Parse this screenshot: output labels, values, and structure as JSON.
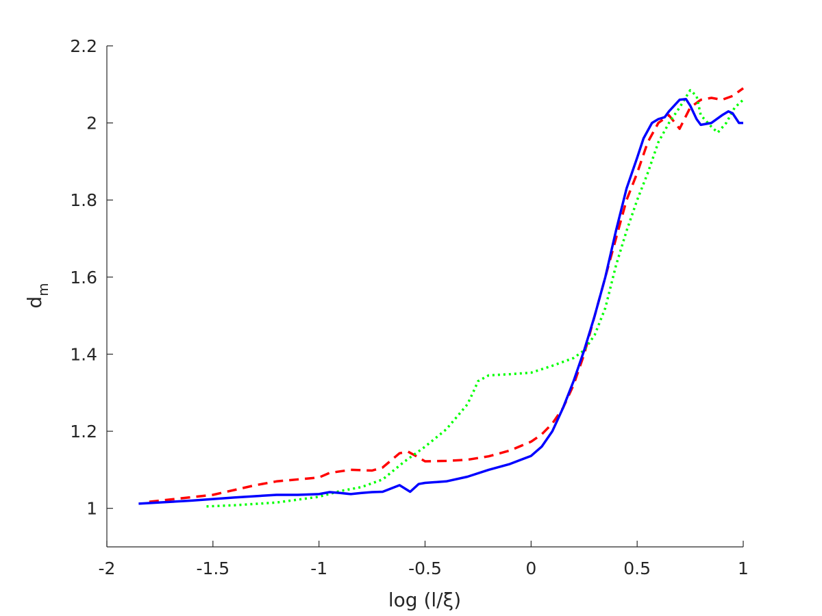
{
  "chart_data": {
    "type": "line",
    "xlabel": "log (l/ξ)",
    "ylabel": "d",
    "ylabel_subscript": "m",
    "xlim": [
      -2,
      1
    ],
    "ylim": [
      0.9,
      2.2
    ],
    "xticks": [
      -2,
      -1.5,
      -1,
      -0.5,
      0,
      0.5,
      1
    ],
    "xtick_labels": [
      "-2",
      "-1.5",
      "-1",
      "-0.5",
      "0",
      "0.5",
      "1"
    ],
    "yticks": [
      1,
      1.2,
      1.4,
      1.6,
      1.8,
      2,
      2.2
    ],
    "ytick_labels": [
      "1",
      "1.2",
      "1.4",
      "1.6",
      "1.8",
      "2",
      "2.2"
    ],
    "grid": false,
    "box": "left-bottom",
    "series": [
      {
        "color": "#ff0000",
        "style": "dashed",
        "x": [
          -1.8,
          -1.5,
          -1.3,
          -1.2,
          -1.0,
          -0.95,
          -0.85,
          -0.75,
          -0.7,
          -0.62,
          -0.58,
          -0.55,
          -0.5,
          -0.4,
          -0.3,
          -0.2,
          -0.1,
          0.0,
          0.05,
          0.1,
          0.15,
          0.2,
          0.25,
          0.3,
          0.35,
          0.4,
          0.45,
          0.5,
          0.55,
          0.6,
          0.65,
          0.7,
          0.75,
          0.8,
          0.85,
          0.9,
          0.95,
          1.0
        ],
        "y": [
          1.017,
          1.035,
          1.06,
          1.07,
          1.08,
          1.092,
          1.1,
          1.098,
          1.106,
          1.143,
          1.147,
          1.138,
          1.122,
          1.123,
          1.126,
          1.135,
          1.15,
          1.173,
          1.192,
          1.22,
          1.26,
          1.32,
          1.4,
          1.5,
          1.6,
          1.7,
          1.8,
          1.87,
          1.95,
          2.0,
          2.02,
          1.985,
          2.04,
          2.06,
          2.065,
          2.06,
          2.07,
          2.09
        ]
      },
      {
        "color": "#00ff00",
        "style": "dotted",
        "x": [
          -1.53,
          -1.4,
          -1.2,
          -1.0,
          -0.9,
          -0.8,
          -0.7,
          -0.6,
          -0.5,
          -0.4,
          -0.3,
          -0.27,
          -0.25,
          -0.2,
          -0.1,
          0.0,
          0.1,
          0.2,
          0.25,
          0.3,
          0.35,
          0.4,
          0.45,
          0.5,
          0.55,
          0.6,
          0.65,
          0.7,
          0.75,
          0.78,
          0.8,
          0.85,
          0.88,
          0.92,
          0.96,
          1.0
        ],
        "y": [
          1.005,
          1.008,
          1.015,
          1.03,
          1.045,
          1.055,
          1.075,
          1.12,
          1.16,
          1.205,
          1.27,
          1.305,
          1.33,
          1.345,
          1.348,
          1.352,
          1.37,
          1.39,
          1.41,
          1.45,
          1.52,
          1.63,
          1.72,
          1.8,
          1.87,
          1.95,
          2.0,
          2.04,
          2.085,
          2.07,
          2.02,
          1.99,
          1.975,
          2.0,
          2.04,
          2.06
        ]
      },
      {
        "color": "#0000ff",
        "style": "solid",
        "x": [
          -1.85,
          -1.6,
          -1.4,
          -1.2,
          -1.1,
          -1.0,
          -0.95,
          -0.9,
          -0.85,
          -0.8,
          -0.75,
          -0.7,
          -0.62,
          -0.57,
          -0.53,
          -0.5,
          -0.4,
          -0.3,
          -0.2,
          -0.1,
          0.0,
          0.05,
          0.1,
          0.15,
          0.2,
          0.25,
          0.3,
          0.35,
          0.4,
          0.45,
          0.5,
          0.53,
          0.57,
          0.6,
          0.63,
          0.65,
          0.7,
          0.73,
          0.75,
          0.78,
          0.8,
          0.85,
          0.9,
          0.93,
          0.95,
          0.98,
          1.0
        ],
        "y": [
          1.012,
          1.02,
          1.028,
          1.035,
          1.035,
          1.037,
          1.042,
          1.04,
          1.037,
          1.04,
          1.042,
          1.043,
          1.06,
          1.043,
          1.063,
          1.066,
          1.07,
          1.082,
          1.1,
          1.115,
          1.136,
          1.16,
          1.2,
          1.26,
          1.33,
          1.41,
          1.5,
          1.6,
          1.72,
          1.83,
          1.91,
          1.96,
          2.0,
          2.01,
          2.015,
          2.03,
          2.06,
          2.062,
          2.045,
          2.01,
          1.995,
          2.0,
          2.02,
          2.03,
          2.025,
          2.0,
          2.0
        ]
      }
    ]
  }
}
